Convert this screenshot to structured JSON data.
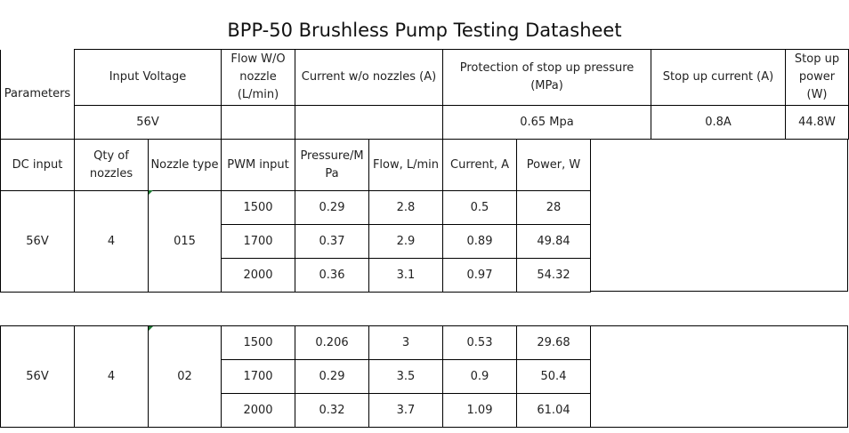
{
  "title": "BPP-50 Brushless Pump Testing Datasheet",
  "params": {
    "row_label": "Parameters",
    "headers": {
      "input_voltage": "Input Voltage",
      "flow_wo_nozzle": "Flow W/O nozzle (L/min)",
      "current_wo_nozzles": "Current w/o nozzles (A)",
      "protection_pressure": "Protection of stop up pressure (MPa)",
      "stop_up_current": "Stop up current (A)",
      "stop_up_power": "Stop up power (W)"
    },
    "values": {
      "input_voltage": "56V",
      "flow_wo_nozzle": "",
      "current_wo_nozzles": "",
      "protection_pressure": "0.65 Mpa",
      "stop_up_current": "0.8A",
      "stop_up_power": "44.8W"
    }
  },
  "data_headers": {
    "dc_input": "DC input",
    "qty_nozzles": "Qty of nozzles",
    "nozzle_type": "Nozzle type",
    "pwm_input": "PWM input",
    "pressure": "Pressure/M Pa",
    "flow": "Flow, L/min",
    "current": "Current, A",
    "power": "Power, W"
  },
  "groups": [
    {
      "dc_input": "56V",
      "qty": "4",
      "nozzle_type": "015",
      "rows": [
        {
          "pwm": "1500",
          "pressure": "0.29",
          "flow": "2.8",
          "current": "0.5",
          "power": "28"
        },
        {
          "pwm": "1700",
          "pressure": "0.37",
          "flow": "2.9",
          "current": "0.89",
          "power": "49.84"
        },
        {
          "pwm": "2000",
          "pressure": "0.36",
          "flow": "3.1",
          "current": "0.97",
          "power": "54.32"
        }
      ]
    },
    {
      "dc_input": "56V",
      "qty": "4",
      "nozzle_type": "02",
      "rows": [
        {
          "pwm": "1500",
          "pressure": "0.206",
          "flow": "3",
          "current": "0.53",
          "power": "29.68"
        },
        {
          "pwm": "1700",
          "pressure": "0.29",
          "flow": "3.5",
          "current": "0.9",
          "power": "50.4"
        },
        {
          "pwm": "2000",
          "pressure": "0.32",
          "flow": "3.7",
          "current": "1.09",
          "power": "61.04"
        }
      ]
    }
  ]
}
